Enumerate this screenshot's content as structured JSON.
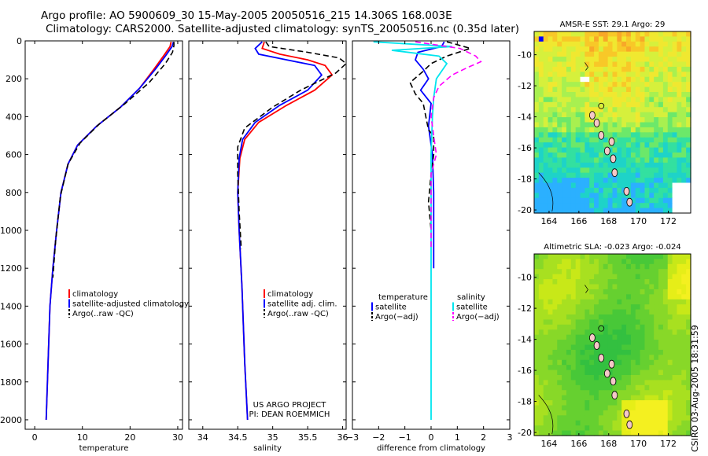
{
  "title_line1": "Argo profile: AO 5900609_30 15-May-2005 20050516_215 14.306S 168.003E",
  "title_line2": "Climatology: CARS2000. Satellite-adjusted climatology: synTS_20050516.nc (0.35d later)",
  "side_stamp": "CSIRO 03-Aug-2005 18:31:59",
  "colors": {
    "climatology": "#ff0000",
    "satellite": "#0000ff",
    "argo": "#000000",
    "sal_sat": "#00e5ee",
    "sal_argo": "#ff00ff"
  },
  "chart_data": [
    {
      "type": "line",
      "panel": "temperature",
      "xlabel": "temperature",
      "xlim": [
        -2,
        31
      ],
      "ylim": [
        2050,
        0
      ],
      "xticks": [
        "0",
        "10",
        "20",
        "30"
      ],
      "yticks": [
        "0",
        "200",
        "400",
        "600",
        "800",
        "1000",
        "1200",
        "1400",
        "1600",
        "1800",
        "2000"
      ],
      "legend": [
        "climatology",
        "satellite-adjusted climatology",
        "Argo(..raw -QC)"
      ],
      "series": [
        {
          "name": "climatology",
          "style": "solid",
          "color": "#ff0000",
          "x": [
            28.6,
            28.4,
            27,
            25,
            22,
            18,
            13,
            9,
            7,
            5.5,
            4.6,
            3.8,
            3.2,
            2.8,
            2.4
          ],
          "y": [
            5,
            30,
            80,
            150,
            250,
            350,
            450,
            550,
            650,
            800,
            1000,
            1200,
            1400,
            1700,
            2000
          ]
        },
        {
          "name": "satellite-adjusted climatology",
          "style": "solid",
          "color": "#0000ff",
          "x": [
            29.1,
            28.8,
            27.4,
            25.3,
            22,
            18,
            13,
            9,
            7,
            5.5,
            4.6,
            3.8,
            3.2,
            2.8,
            2.4
          ],
          "y": [
            5,
            30,
            80,
            150,
            250,
            350,
            450,
            550,
            650,
            800,
            1000,
            1200,
            1400,
            1700,
            2000
          ]
        },
        {
          "name": "Argo(..raw -QC)",
          "style": "dash",
          "color": "#000000",
          "x": [
            29.2,
            29.2,
            28.9,
            27.4,
            24,
            19,
            13.5,
            9.5,
            7,
            5.4,
            4.4,
            3.8
          ],
          "y": [
            5,
            25,
            60,
            120,
            220,
            330,
            440,
            540,
            650,
            820,
            1050,
            1250
          ]
        }
      ]
    },
    {
      "type": "line",
      "panel": "salinity",
      "xlabel": "salinity",
      "xlim": [
        33.8,
        36.05
      ],
      "ylim": [
        2050,
        0
      ],
      "xticks": [
        "34",
        "34.5",
        "35",
        "35.5",
        "36"
      ],
      "yticks": [],
      "legend": [
        "climatology",
        "satellite adj. clim.",
        "Argo(..raw -QC)"
      ],
      "series": [
        {
          "name": "climatology",
          "style": "solid",
          "color": "#ff0000",
          "x": [
            34.88,
            34.85,
            35.1,
            35.5,
            35.75,
            35.85,
            35.6,
            35.2,
            34.8,
            34.6,
            34.53,
            34.5,
            34.52,
            34.56,
            34.6,
            34.64
          ],
          "y": [
            5,
            40,
            70,
            100,
            130,
            180,
            260,
            340,
            430,
            520,
            620,
            800,
            1000,
            1300,
            1700,
            2000
          ]
        },
        {
          "name": "satellite adj. clim.",
          "style": "solid",
          "color": "#0000ff",
          "x": [
            34.85,
            34.75,
            34.8,
            35.2,
            35.6,
            35.7,
            35.5,
            35.1,
            34.75,
            34.57,
            34.52,
            34.5,
            34.52,
            34.56,
            34.6,
            34.64
          ],
          "y": [
            5,
            40,
            70,
            100,
            130,
            180,
            260,
            340,
            430,
            520,
            620,
            800,
            1000,
            1300,
            1700,
            2000
          ]
        },
        {
          "name": "Argo(..raw -QC)",
          "style": "dash",
          "color": "#000000",
          "x": [
            34.9,
            34.95,
            35.5,
            35.95,
            36.05,
            35.9,
            35.4,
            35.0,
            34.6,
            34.5,
            34.5,
            34.52,
            34.55
          ],
          "y": [
            5,
            30,
            60,
            90,
            120,
            170,
            260,
            350,
            460,
            560,
            700,
            900,
            1100
          ]
        }
      ],
      "annotations": [
        "US ARGO PROJECT",
        "PI: DEAN ROEMMICH"
      ]
    },
    {
      "type": "line",
      "panel": "difference",
      "xlabel": "difference from climatology",
      "xlim": [
        -3,
        3
      ],
      "ylim": [
        2050,
        0
      ],
      "xticks": [
        "−3",
        "−2",
        "−1",
        "0",
        "1",
        "2",
        "3"
      ],
      "yticks": [],
      "legend_left": [
        "temperature",
        "satellite",
        "Argo(−adj)"
      ],
      "legend_right": [
        "salinity",
        "satellite",
        "Argo(−adj)"
      ],
      "series": [
        {
          "name": "temperature satellite",
          "style": "solid",
          "color": "#0000ff",
          "x": [
            0.5,
            0.4,
            -0.5,
            -0.6,
            -0.3,
            -0.1,
            -0.4,
            0,
            -0.1,
            0.05,
            0.1,
            0.1
          ],
          "y": [
            5,
            30,
            60,
            100,
            150,
            200,
            260,
            330,
            450,
            600,
            800,
            1200
          ]
        },
        {
          "name": "temperature Argo(-adj)",
          "style": "dash",
          "color": "#000000",
          "x": [
            0.6,
            1,
            1.5,
            0.6,
            0,
            -0.3,
            -0.8,
            -0.6,
            -0.3,
            -0.2,
            -0.1,
            0.1,
            0.1,
            0,
            -0.1,
            0
          ],
          "y": [
            5,
            20,
            40,
            80,
            120,
            160,
            220,
            280,
            330,
            400,
            470,
            500,
            600,
            700,
            850,
            1000
          ]
        },
        {
          "name": "salinity satellite",
          "style": "solid",
          "color": "#00e5ee",
          "x": [
            -2.2,
            0.8,
            -1.5,
            0.3,
            0.6,
            0.4,
            0.2,
            0.1,
            0.05,
            0,
            0,
            0,
            0,
            0,
            0
          ],
          "y": [
            5,
            30,
            50,
            80,
            120,
            160,
            200,
            300,
            400,
            600,
            800,
            1000,
            1400,
            1800,
            2000
          ]
        },
        {
          "name": "salinity Argo(-adj)",
          "style": "dash",
          "color": "#ff00ff",
          "x": [
            -0.6,
            1.1,
            1.7,
            1.9,
            1.4,
            0.8,
            0.3,
            0.1,
            0,
            0.1,
            0.2,
            0,
            0,
            0
          ],
          "y": [
            5,
            40,
            80,
            110,
            140,
            180,
            240,
            300,
            400,
            500,
            600,
            700,
            900,
            1100
          ]
        }
      ]
    },
    {
      "type": "heatmap",
      "panel": "sst_map",
      "title": "AMSR-E SST: 29.1 Argo: 29",
      "xlim": [
        163,
        173.5
      ],
      "ylim": [
        -20.2,
        -8.5
      ],
      "xticks": [
        "164",
        "166",
        "168",
        "170",
        "172"
      ],
      "yticks": [
        "-10",
        "-12",
        "-14",
        "-16",
        "-18",
        "-20"
      ]
    },
    {
      "type": "heatmap",
      "panel": "sla_map",
      "title": "Altimetric SLA: -0.023 Argo: -0.024",
      "xlim": [
        163,
        173.5
      ],
      "ylim": [
        -20.2,
        -8.5
      ],
      "xticks": [
        "164",
        "166",
        "168",
        "170",
        "172"
      ],
      "yticks": [
        "-10",
        "-12",
        "-14",
        "-16",
        "-18",
        "-20"
      ]
    }
  ]
}
